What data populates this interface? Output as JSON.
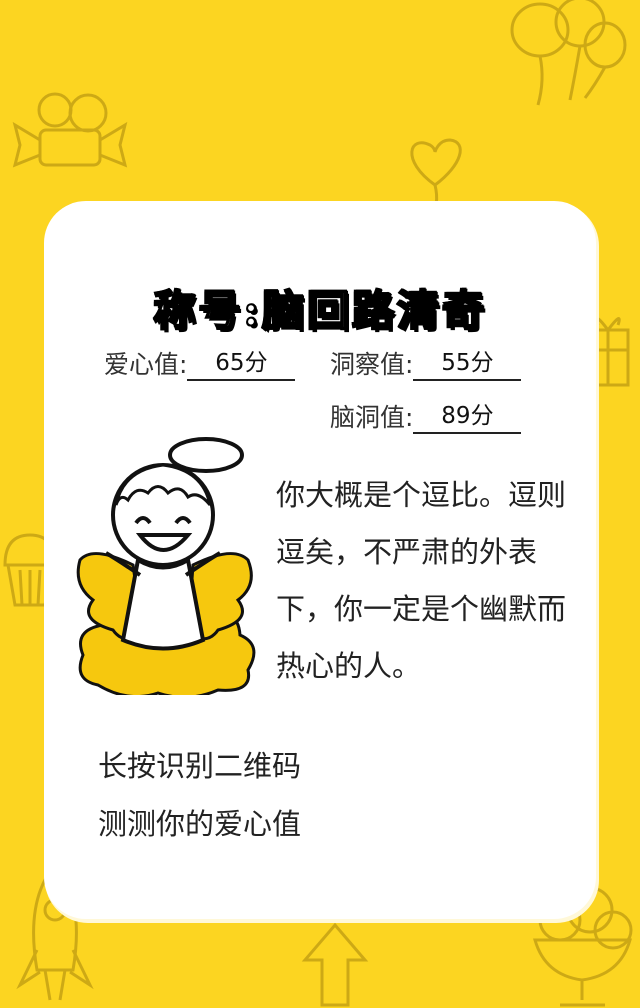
{
  "card": {
    "title": "称号:脑回路清奇",
    "stats": [
      {
        "label": "爱心值:",
        "value": "65分"
      },
      {
        "label": "洞察值:",
        "value": "55分"
      },
      {
        "label": "脑洞值:",
        "value": "89分"
      }
    ],
    "description": "你大概是个逗比。逗则逗矣，不严肃的外表下，你一定是个幽默而热心的人。",
    "qr_line1": "长按识别二维码",
    "qr_line2": "测测你的爱心值"
  },
  "colors": {
    "background": "#fcd521",
    "card": "#ffffff",
    "wing_yellow": "#f6c80e"
  }
}
